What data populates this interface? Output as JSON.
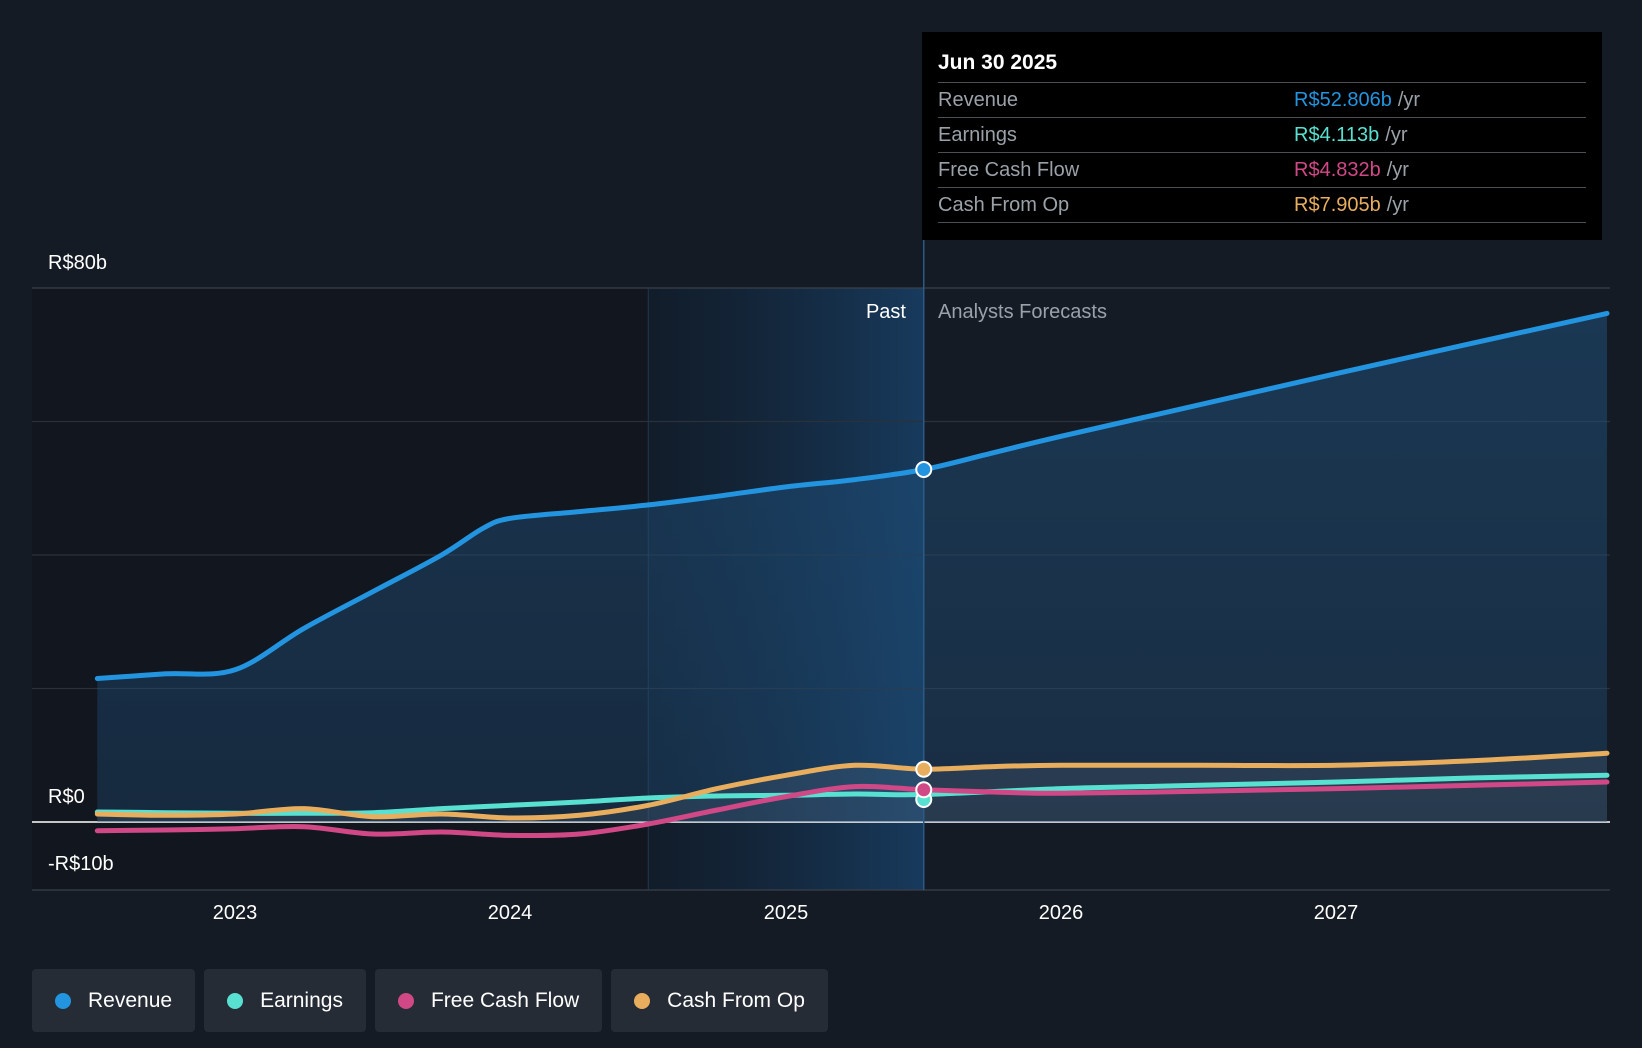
{
  "chart_data": {
    "type": "line",
    "currency_prefix": "R$",
    "y_ticks": [
      "R$80b",
      "R$0",
      "-R$10b"
    ],
    "ylim": [
      -10,
      80
    ],
    "x_ticks": [
      "2023",
      "2024",
      "2025",
      "2026",
      "2027"
    ],
    "xlim": [
      2022.5,
      2027.98
    ],
    "divider_x": 2025.5,
    "past_band_start": 2024.5,
    "regions": {
      "past": "Past",
      "forecast": "Analysts Forecasts"
    },
    "series": [
      {
        "name": "Revenue",
        "color": "#2394df",
        "points": [
          [
            2022.5,
            21.5
          ],
          [
            2022.75,
            22.2
          ],
          [
            2023,
            22.8
          ],
          [
            2023.25,
            29
          ],
          [
            2023.5,
            34.5
          ],
          [
            2023.75,
            40
          ],
          [
            2023.9,
            44
          ],
          [
            2024,
            45.5
          ],
          [
            2024.25,
            46.5
          ],
          [
            2024.5,
            47.5
          ],
          [
            2024.75,
            48.8
          ],
          [
            2025,
            50.2
          ],
          [
            2025.25,
            51.3
          ],
          [
            2025.5,
            52.806
          ],
          [
            2025.75,
            55.3
          ],
          [
            2026,
            57.8
          ],
          [
            2026.5,
            62.5
          ],
          [
            2027,
            67.2
          ],
          [
            2027.5,
            71.8
          ],
          [
            2027.98,
            76.2
          ]
        ]
      },
      {
        "name": "Earnings",
        "color": "#58e0d0",
        "points": [
          [
            2022.5,
            1.5
          ],
          [
            2022.75,
            1.4
          ],
          [
            2023,
            1.3
          ],
          [
            2023.25,
            1.3
          ],
          [
            2023.5,
            1.4
          ],
          [
            2023.75,
            2
          ],
          [
            2024,
            2.5
          ],
          [
            2024.25,
            3
          ],
          [
            2024.5,
            3.6
          ],
          [
            2024.75,
            3.9
          ],
          [
            2025,
            4
          ],
          [
            2025.25,
            4.2
          ],
          [
            2025.5,
            4.113
          ],
          [
            2026,
            5
          ],
          [
            2026.5,
            5.5
          ],
          [
            2027,
            6
          ],
          [
            2027.5,
            6.6
          ],
          [
            2027.98,
            7
          ]
        ]
      },
      {
        "name": "Free Cash Flow",
        "color": "#d14887",
        "points": [
          [
            2022.5,
            -1.3
          ],
          [
            2022.75,
            -1.2
          ],
          [
            2023,
            -1
          ],
          [
            2023.25,
            -0.7
          ],
          [
            2023.5,
            -1.8
          ],
          [
            2023.75,
            -1.5
          ],
          [
            2024,
            -2
          ],
          [
            2024.25,
            -1.8
          ],
          [
            2024.5,
            -0.3
          ],
          [
            2024.75,
            1.8
          ],
          [
            2025,
            3.8
          ],
          [
            2025.25,
            5.3
          ],
          [
            2025.5,
            4.832
          ],
          [
            2025.75,
            4.5
          ],
          [
            2026,
            4.3
          ],
          [
            2026.5,
            4.6
          ],
          [
            2027,
            5
          ],
          [
            2027.5,
            5.5
          ],
          [
            2027.98,
            6
          ]
        ]
      },
      {
        "name": "Cash From Op",
        "color": "#e9ad5e",
        "points": [
          [
            2022.5,
            1.2
          ],
          [
            2022.75,
            1
          ],
          [
            2023,
            1.2
          ],
          [
            2023.25,
            2
          ],
          [
            2023.5,
            0.8
          ],
          [
            2023.75,
            1.2
          ],
          [
            2024,
            0.6
          ],
          [
            2024.25,
            1
          ],
          [
            2024.5,
            2.5
          ],
          [
            2024.75,
            5
          ],
          [
            2025,
            7
          ],
          [
            2025.25,
            8.5
          ],
          [
            2025.5,
            7.905
          ],
          [
            2025.75,
            8.3
          ],
          [
            2026,
            8.5
          ],
          [
            2026.5,
            8.5
          ],
          [
            2027,
            8.5
          ],
          [
            2027.5,
            9.2
          ],
          [
            2027.98,
            10.3
          ]
        ]
      }
    ]
  },
  "tooltip": {
    "date": "Jun 30 2025",
    "unit": "/yr",
    "rows": [
      {
        "label": "Revenue",
        "value": "R$52.806b",
        "color": "#2394df"
      },
      {
        "label": "Earnings",
        "value": "R$4.113b",
        "color": "#58e0d0"
      },
      {
        "label": "Free Cash Flow",
        "value": "R$4.832b",
        "color": "#d14887"
      },
      {
        "label": "Cash From Op",
        "value": "R$7.905b",
        "color": "#e9ad5e"
      }
    ]
  },
  "legend": [
    {
      "label": "Revenue",
      "color": "#2394df"
    },
    {
      "label": "Earnings",
      "color": "#58e0d0"
    },
    {
      "label": "Free Cash Flow",
      "color": "#d14887"
    },
    {
      "label": "Cash From Op",
      "color": "#e9ad5e"
    }
  ]
}
